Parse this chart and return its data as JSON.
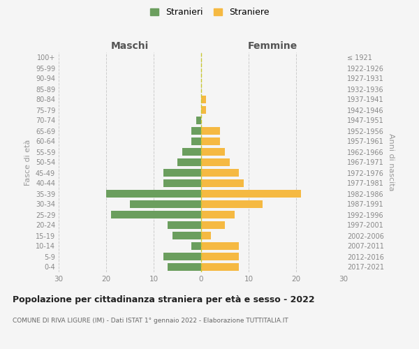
{
  "age_groups": [
    "0-4",
    "5-9",
    "10-14",
    "15-19",
    "20-24",
    "25-29",
    "30-34",
    "35-39",
    "40-44",
    "45-49",
    "50-54",
    "55-59",
    "60-64",
    "65-69",
    "70-74",
    "75-79",
    "80-84",
    "85-89",
    "90-94",
    "95-99",
    "100+"
  ],
  "birth_years": [
    "2017-2021",
    "2012-2016",
    "2007-2011",
    "2002-2006",
    "1997-2001",
    "1992-1996",
    "1987-1991",
    "1982-1986",
    "1977-1981",
    "1972-1976",
    "1967-1971",
    "1962-1966",
    "1957-1961",
    "1952-1956",
    "1947-1951",
    "1942-1946",
    "1937-1941",
    "1932-1936",
    "1927-1931",
    "1922-1926",
    "≤ 1921"
  ],
  "males": [
    7,
    8,
    2,
    6,
    7,
    19,
    15,
    20,
    8,
    8,
    5,
    4,
    2,
    2,
    1,
    0,
    0,
    0,
    0,
    0,
    0
  ],
  "females": [
    8,
    8,
    8,
    2,
    5,
    7,
    13,
    21,
    9,
    8,
    6,
    5,
    4,
    4,
    0,
    1,
    1,
    0,
    0,
    0,
    0
  ],
  "male_color": "#6b9e5e",
  "female_color": "#f5b942",
  "background_color": "#f5f5f5",
  "grid_color": "#cccccc",
  "title": "Popolazione per cittadinanza straniera per età e sesso - 2022",
  "subtitle": "COMUNE DI RIVA LIGURE (IM) - Dati ISTAT 1° gennaio 2022 - Elaborazione TUTTITALIA.IT",
  "maschi_label": "Maschi",
  "femmine_label": "Femmine",
  "fasce_label": "Fasce di età",
  "anni_label": "Anni di nascita",
  "legend_male": "Stranieri",
  "legend_female": "Straniere",
  "xlim": 30,
  "center_line_color": "#c8c830"
}
